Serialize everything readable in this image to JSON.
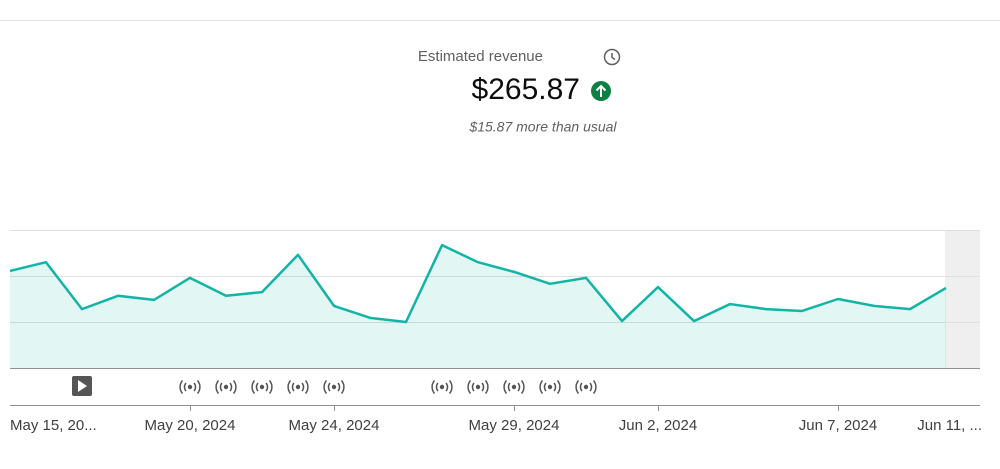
{
  "header": {
    "title": "Estimated revenue",
    "value": "$265.87",
    "note": "$15.87 more than usual"
  },
  "chart_data": {
    "type": "line",
    "categories": [
      "May 15, 20...",
      null,
      null,
      null,
      null,
      "May 20, 2024",
      null,
      null,
      null,
      "May 24, 2024",
      null,
      null,
      null,
      null,
      "May 29, 2024",
      null,
      null,
      null,
      "Jun 2, 2024",
      null,
      null,
      null,
      null,
      "Jun 7, 2024",
      null,
      null,
      "Jun 11, ..."
    ],
    "values": [
      2.11,
      2.3,
      1.28,
      1.57,
      1.48,
      1.96,
      1.57,
      1.65,
      2.46,
      1.35,
      1.09,
      1.0,
      2.67,
      2.3,
      2.09,
      1.83,
      1.96,
      1.02,
      1.76,
      1.02,
      1.39,
      1.28,
      1.24,
      1.5,
      1.35,
      1.28,
      1.74
    ],
    "color": "#12b5a5",
    "ylim": [
      0,
      3
    ],
    "yticks": [
      0,
      1,
      2,
      3
    ],
    "grid": true
  }
}
